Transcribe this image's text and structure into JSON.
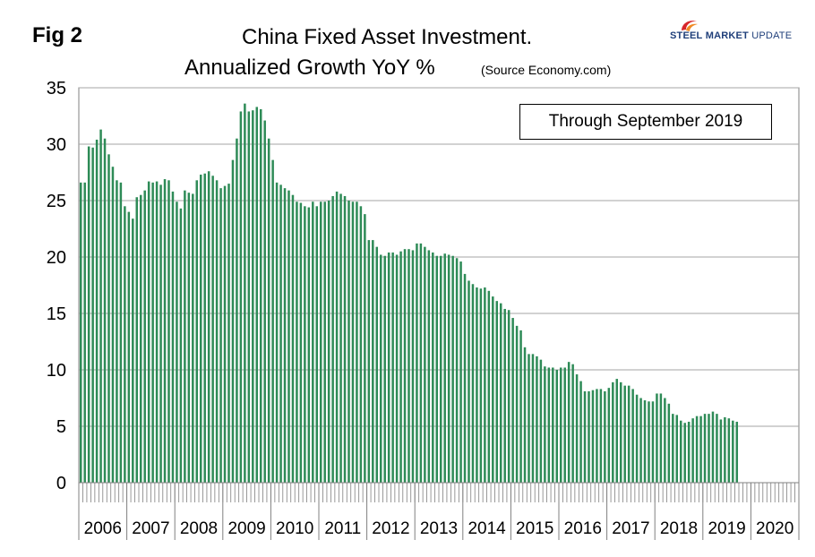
{
  "figure": {
    "label": "Fig 2",
    "title_line1": "China Fixed Asset Investment.",
    "title_line2": "Annualized Growth YoY %",
    "source": "(Source Economy.com)",
    "note": "Through September 2019",
    "logo": {
      "word1": "STEEL",
      "word2": "MARKET",
      "word3": "UPDATE",
      "colors": {
        "swirl_red": "#d7262b",
        "swirl_orange": "#f08a24",
        "text": "#1f3f7a"
      }
    }
  },
  "chart_data": {
    "type": "bar",
    "title": "China Fixed Asset Investment. Annualized Growth YoY %",
    "xlabel": "",
    "ylabel": "",
    "ylim": [
      0,
      35
    ],
    "yticks": [
      0,
      5,
      10,
      15,
      20,
      25,
      30,
      35
    ],
    "grid": true,
    "bar_color": "#2e8b57",
    "years": [
      "2006",
      "2007",
      "2008",
      "2009",
      "2010",
      "2011",
      "2012",
      "2013",
      "2014",
      "2015",
      "2016",
      "2017",
      "2018",
      "2019",
      "2020"
    ],
    "months_per_year": 12,
    "start": "2006-01",
    "end": "2019-09",
    "values": [
      26.6,
      26.6,
      29.8,
      29.7,
      30.4,
      31.3,
      30.5,
      29.1,
      28.0,
      26.8,
      26.6,
      24.5,
      24.0,
      23.4,
      25.3,
      25.5,
      25.9,
      26.7,
      26.6,
      26.7,
      26.4,
      26.9,
      26.8,
      25.8,
      24.9,
      24.3,
      25.9,
      25.7,
      25.6,
      26.8,
      27.3,
      27.4,
      27.6,
      27.2,
      26.8,
      26.1,
      26.3,
      26.5,
      28.6,
      30.5,
      32.9,
      33.6,
      32.9,
      33.0,
      33.3,
      33.1,
      32.1,
      30.5,
      28.6,
      26.6,
      26.4,
      26.1,
      25.9,
      25.5,
      24.9,
      24.8,
      24.5,
      24.4,
      24.9,
      24.5,
      24.9,
      24.9,
      25.0,
      25.4,
      25.8,
      25.6,
      25.4,
      25.0,
      24.9,
      24.9,
      24.5,
      23.8,
      21.5,
      21.5,
      20.9,
      20.2,
      20.1,
      20.4,
      20.4,
      20.2,
      20.5,
      20.7,
      20.7,
      20.6,
      21.2,
      21.2,
      20.9,
      20.6,
      20.4,
      20.1,
      20.1,
      20.3,
      20.2,
      20.1,
      19.9,
      19.6,
      18.5,
      17.9,
      17.6,
      17.3,
      17.2,
      17.3,
      17.0,
      16.5,
      16.1,
      15.9,
      15.4,
      15.3,
      14.6,
      13.9,
      13.5,
      12.0,
      11.4,
      11.4,
      11.2,
      10.9,
      10.3,
      10.2,
      10.2,
      10.0,
      10.2,
      10.2,
      10.7,
      10.5,
      9.6,
      9.0,
      8.1,
      8.1,
      8.2,
      8.3,
      8.3,
      8.1,
      8.4,
      8.9,
      9.2,
      8.9,
      8.6,
      8.6,
      8.3,
      7.8,
      7.5,
      7.3,
      7.2,
      7.2,
      7.9,
      7.9,
      7.5,
      7.0,
      6.1,
      6.0,
      5.5,
      5.3,
      5.4,
      5.7,
      5.9,
      5.9,
      6.1,
      6.1,
      6.3,
      6.1,
      5.6,
      5.8,
      5.7,
      5.5,
      5.4
    ]
  }
}
